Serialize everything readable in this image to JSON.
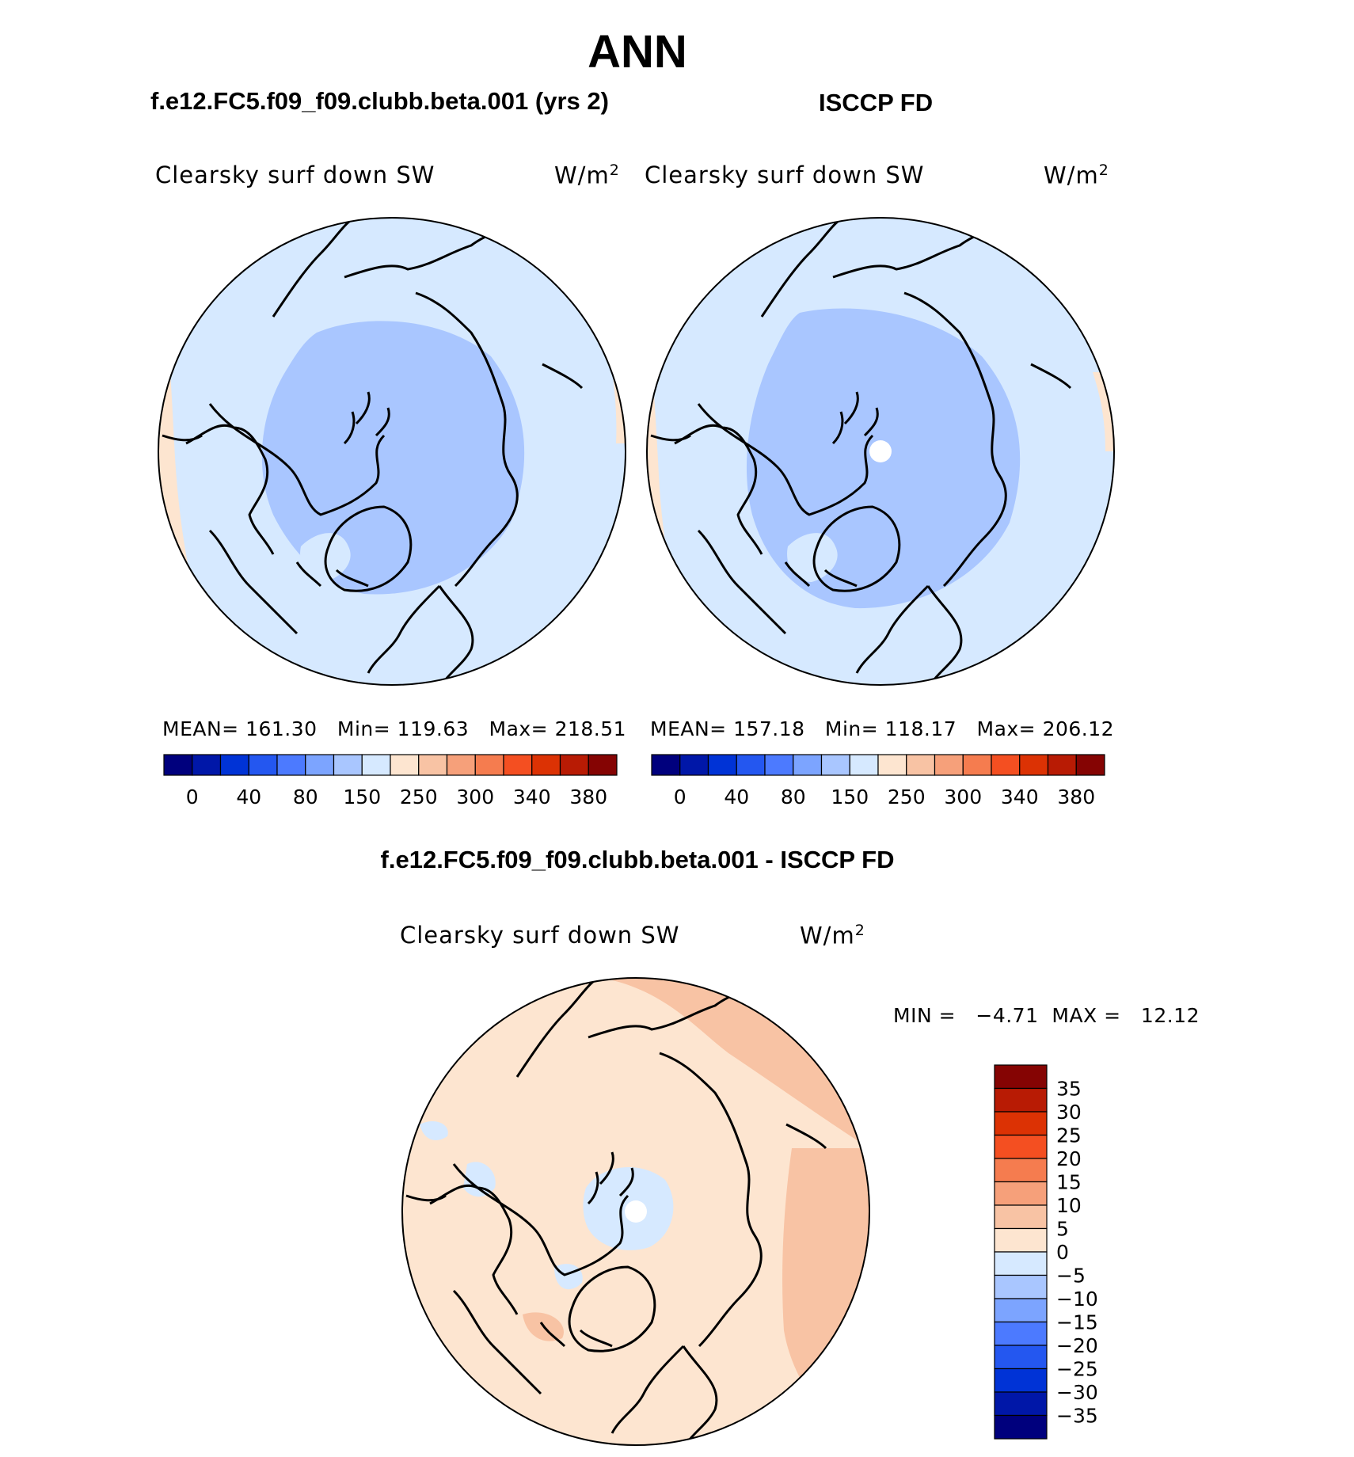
{
  "page": {
    "title": "ANN",
    "panels": [
      {
        "case_title": "f.e12.FC5.f09_f09.clubb.beta.001 (yrs 2)",
        "variable": "Clearsky surf down SW",
        "units": "W/m",
        "units_exp": "2",
        "stats": {
          "mean_label": "MEAN=",
          "mean": "161.30",
          "min_label": "Min=",
          "min": "119.63",
          "max_label": "Max=",
          "max": "218.51"
        }
      },
      {
        "case_title": "ISCCP FD",
        "variable": "Clearsky surf down SW",
        "units": "W/m",
        "units_exp": "2",
        "stats": {
          "mean_label": "MEAN=",
          "mean": "157.18",
          "min_label": "Min=",
          "min": "118.17",
          "max_label": "Max=",
          "max": "206.12"
        }
      }
    ],
    "difference": {
      "title": "f.e12.FC5.f09_f09.clubb.beta.001 - ISCCP FD",
      "variable": "Clearsky surf down SW",
      "units": "W/m",
      "units_exp": "2",
      "range_text": "MIN =   −4.71  MAX =   12.12"
    },
    "horizontal_colorbar": {
      "colors": [
        "#00007d",
        "#0017a8",
        "#0033d6",
        "#2457f0",
        "#4c7aff",
        "#7ca4ff",
        "#a9c6ff",
        "#d6e9ff",
        "#fde5d0",
        "#f8c3a4",
        "#f6a07a",
        "#f57c4f",
        "#f44f21",
        "#dc3204",
        "#b81b04",
        "#850403"
      ],
      "tick_labels": [
        "0",
        "40",
        "80",
        "150",
        "250",
        "300",
        "340",
        "380"
      ]
    },
    "vertical_colorbar": {
      "colors": [
        "#850403",
        "#b81b04",
        "#dc3204",
        "#f44f21",
        "#f57c4f",
        "#f6a07a",
        "#f8c3a4",
        "#fde5d0",
        "#d6e9ff",
        "#a9c6ff",
        "#7ca4ff",
        "#4c7aff",
        "#2457f0",
        "#0033d6",
        "#0017a8",
        "#00007d"
      ],
      "tick_labels": [
        "35",
        "30",
        "25",
        "20",
        "15",
        "10",
        "5",
        "0",
        "−5",
        "−10",
        "−15",
        "−20",
        "−25",
        "−30",
        "−35"
      ]
    }
  }
}
